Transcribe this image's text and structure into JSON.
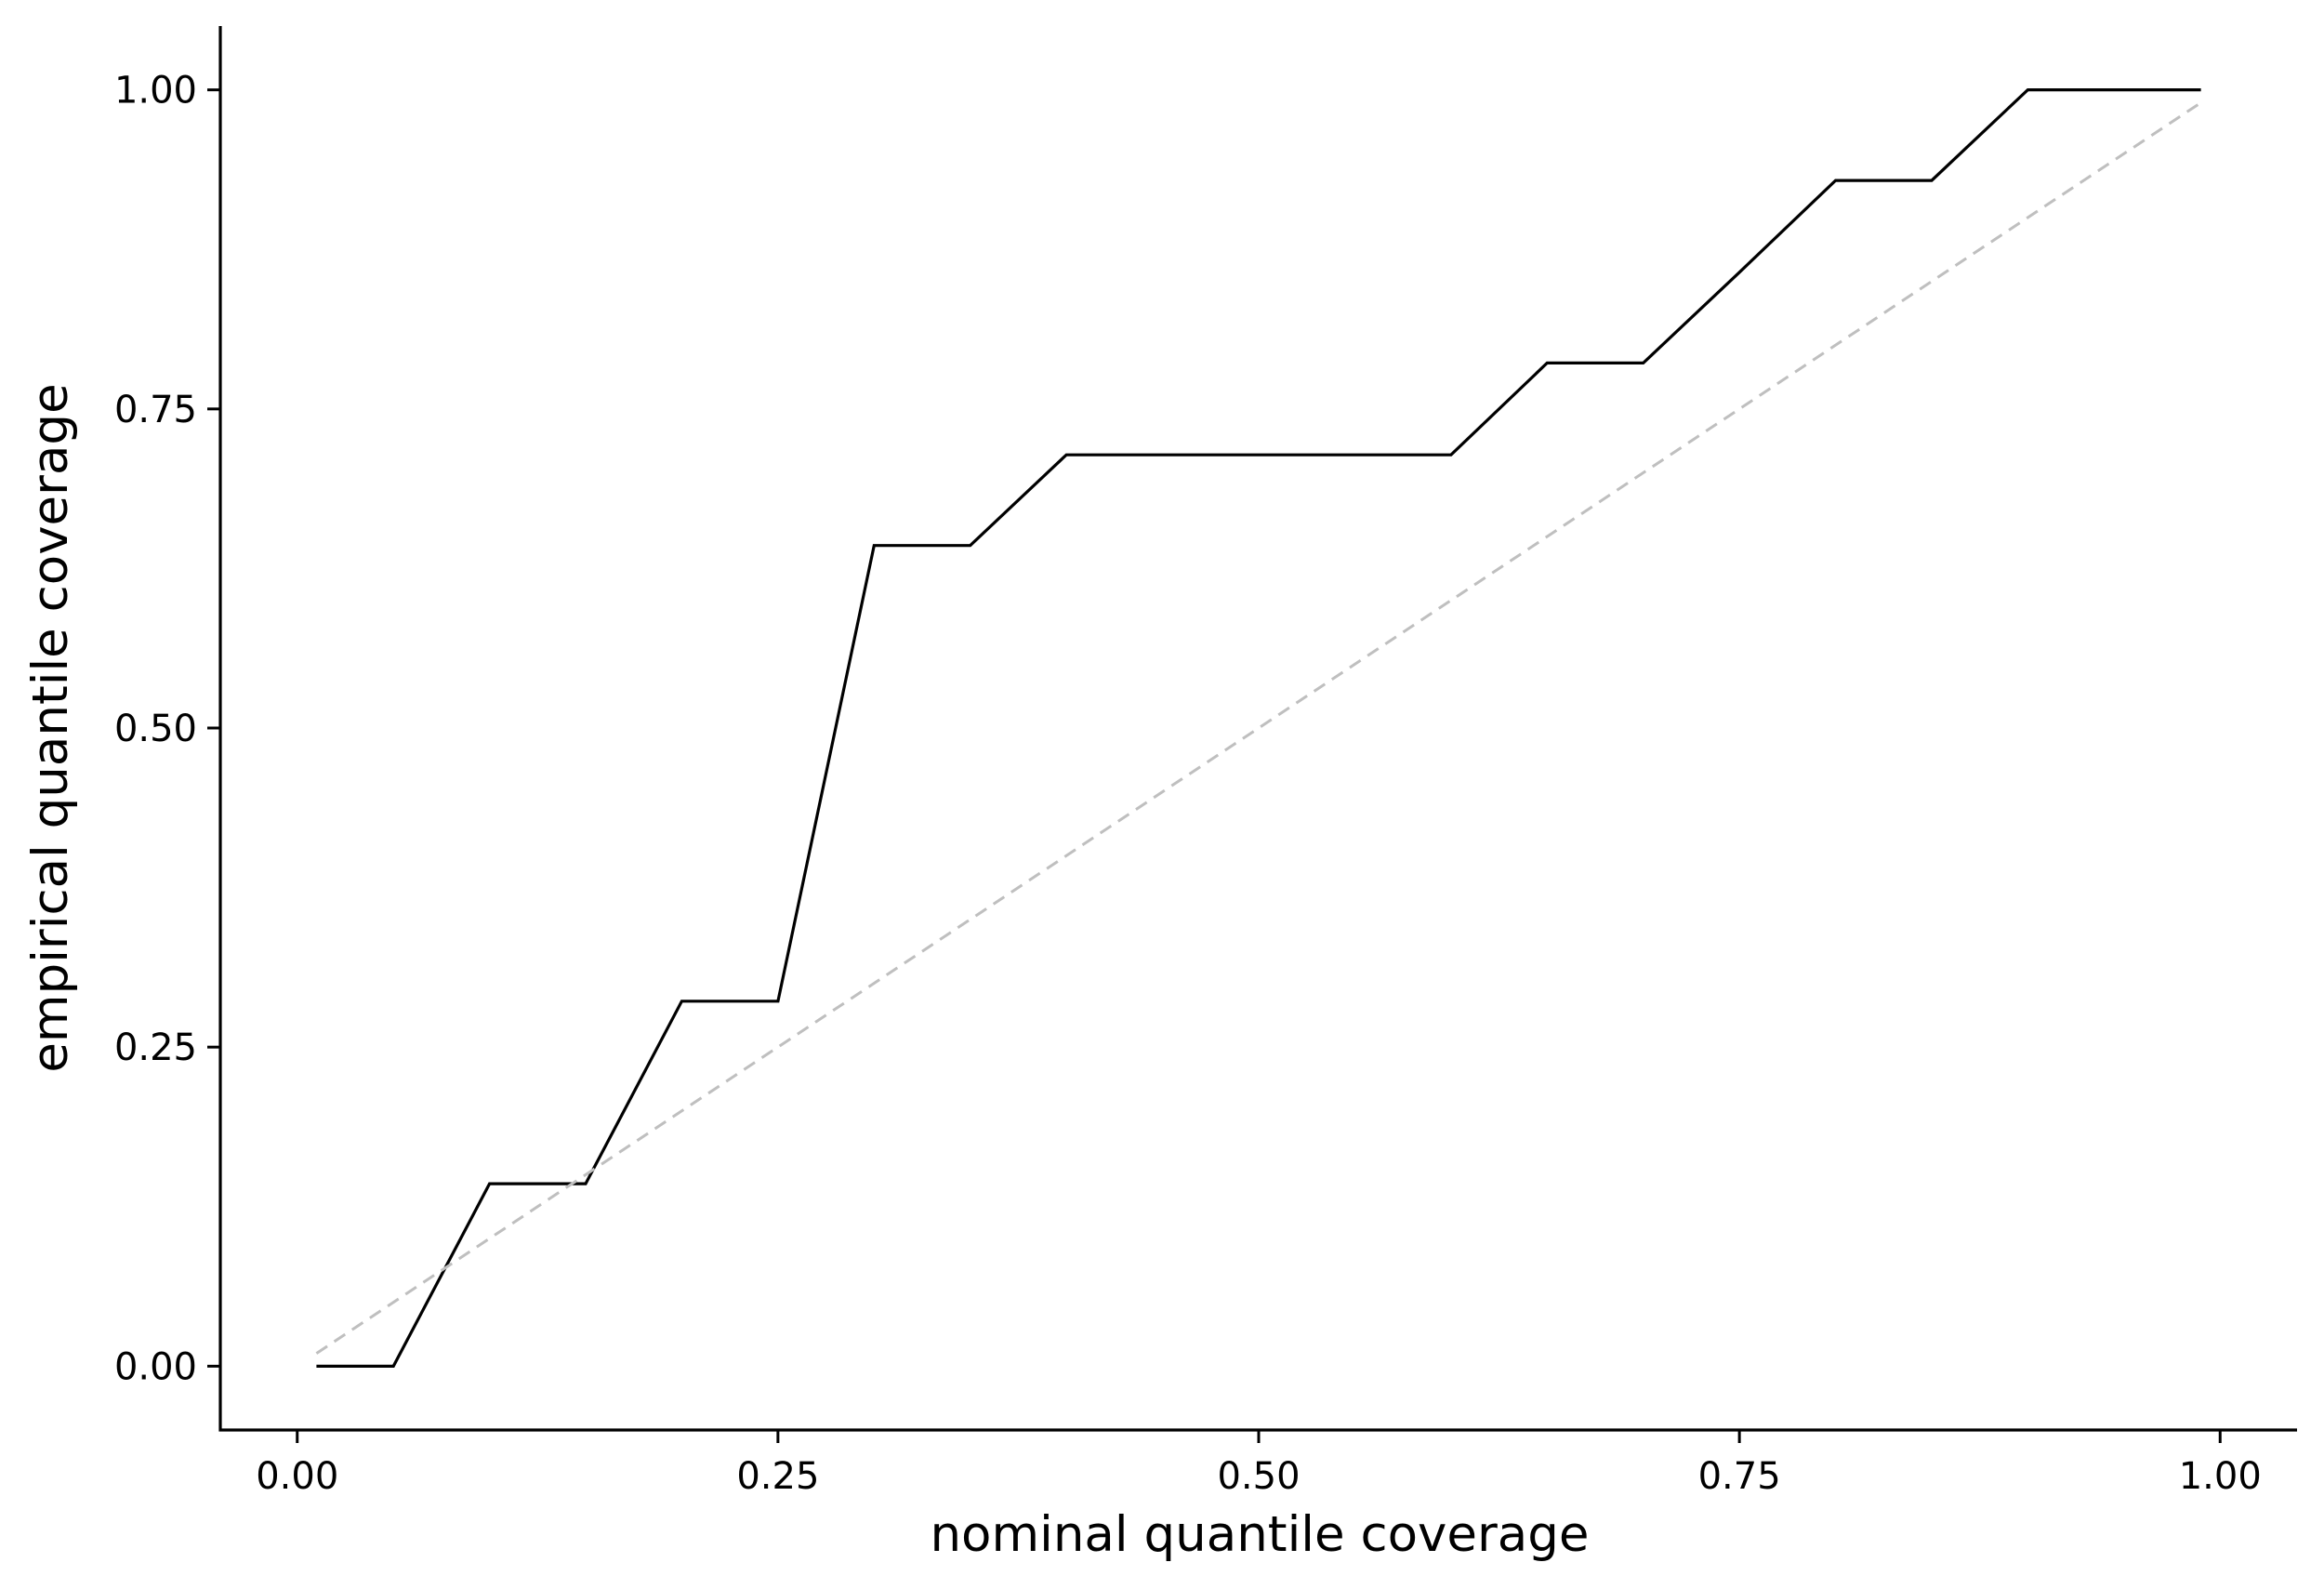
{
  "chart_data": {
    "type": "line",
    "xlabel": "nominal quantile coverage",
    "ylabel": "empirical quantile coverage",
    "xlim": [
      -0.04,
      1.04
    ],
    "ylim": [
      -0.05,
      1.05
    ],
    "x_ticks": [
      "0.00",
      "0.25",
      "0.50",
      "0.75",
      "1.00"
    ],
    "y_ticks": [
      "0.00",
      "0.25",
      "0.50",
      "0.75",
      "1.00"
    ],
    "grid": false,
    "legend": false,
    "series": [
      {
        "color": "#000000",
        "style": "solid",
        "x": [
          0.01,
          0.05,
          0.1,
          0.15,
          0.2,
          0.25,
          0.3,
          0.35,
          0.4,
          0.45,
          0.5,
          0.55,
          0.6,
          0.65,
          0.7,
          0.75,
          0.8,
          0.85,
          0.9,
          0.95,
          0.99
        ],
        "y": [
          0.0,
          0.0,
          0.143,
          0.143,
          0.286,
          0.286,
          0.643,
          0.643,
          0.714,
          0.714,
          0.714,
          0.714,
          0.714,
          0.786,
          0.786,
          0.857,
          0.929,
          0.929,
          1.0,
          1.0,
          1.0
        ]
      },
      {
        "color": "#bfbfbf",
        "style": "dashed",
        "x": [
          0.01,
          0.99
        ],
        "y": [
          0.01,
          0.99
        ]
      }
    ]
  }
}
